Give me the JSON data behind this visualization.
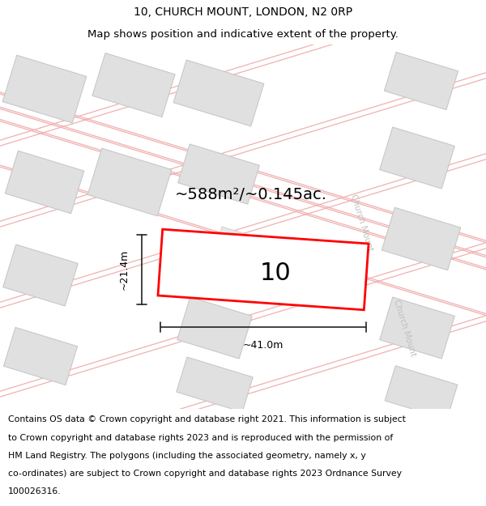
{
  "title": "10, CHURCH MOUNT, LONDON, N2 0RP",
  "subtitle": "Map shows position and indicative extent of the property.",
  "copyright_lines": [
    "Contains OS data © Crown copyright and database right 2021. This information is subject",
    "to Crown copyright and database rights 2023 and is reproduced with the permission of",
    "HM Land Registry. The polygons (including the associated geometry, namely x, y",
    "co-ordinates) are subject to Crown copyright and database rights 2023 Ordnance Survey",
    "100026316."
  ],
  "map_bg": "#ffffff",
  "road_line_color": "#f0b0b0",
  "road_fill_color": "#f8f8f8",
  "building_color": "#e0e0e0",
  "building_edge": "#c8c8c8",
  "property_edge": "#ff0000",
  "property_label": "10",
  "area_label": "~588m²/~0.145ac.",
  "dim_h_label": "~21.4m",
  "dim_w_label": "~41.0m",
  "road_label": "Church Mount",
  "title_fontsize": 10,
  "subtitle_fontsize": 9.5,
  "copyright_fontsize": 7.8,
  "label_fontsize": 14,
  "property_num_fontsize": 22,
  "dim_fontsize": 9,
  "road_text_color": "#c0c0c0",
  "road_text_fontsize": 7.5
}
